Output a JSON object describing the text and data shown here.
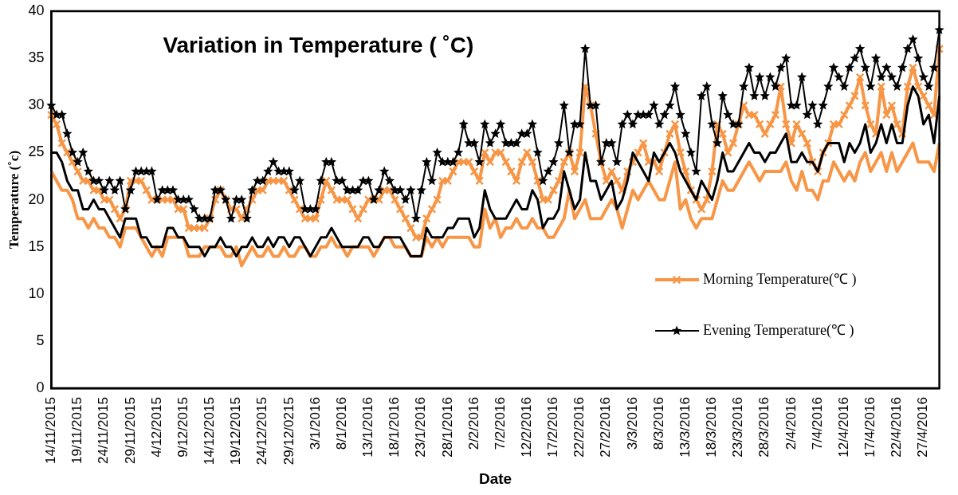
{
  "chart_data": {
    "type": "line",
    "title": "Variation in Temperature ( ˚C)",
    "xlabel": "Date",
    "ylabel": "Temperature (˚c)",
    "categories": [
      "14/11/2015",
      null,
      null,
      null,
      null,
      "19/11/2015",
      null,
      null,
      null,
      null,
      "24/11/2015",
      null,
      null,
      null,
      null,
      "29/11/2015",
      null,
      null,
      null,
      null,
      "4/12/2015",
      null,
      null,
      null,
      null,
      "9/12/2015",
      null,
      null,
      null,
      null,
      "14/12/2015",
      null,
      null,
      null,
      null,
      "19/12/2015",
      null,
      null,
      null,
      null,
      "24/12/2015",
      null,
      null,
      null,
      null,
      "29/12/0215",
      null,
      null,
      null,
      null,
      "3/1/2016",
      null,
      null,
      null,
      null,
      "8/1/2016",
      null,
      null,
      null,
      null,
      "13/1/2016",
      null,
      null,
      null,
      null,
      "18/1/2016",
      null,
      null,
      null,
      null,
      "23/1/2016",
      null,
      null,
      null,
      null,
      "28/1/2016",
      null,
      null,
      null,
      null,
      "2/2/2016",
      null,
      null,
      null,
      null,
      "7/2/2016",
      null,
      null,
      null,
      null,
      "12/2/2016",
      null,
      null,
      null,
      null,
      "17/2/2016",
      null,
      null,
      null,
      null,
      "22/2/2016",
      null,
      null,
      null,
      null,
      "27/2/2016",
      null,
      null,
      null,
      null,
      "3/3/2016",
      null,
      null,
      null,
      null,
      "8/3/2016",
      null,
      null,
      null,
      null,
      "13/3/2016",
      null,
      null,
      null,
      null,
      "18/3/2016",
      null,
      null,
      null,
      null,
      "23/3/2016",
      null,
      null,
      null,
      null,
      "28/3/2016",
      null,
      null,
      null,
      null,
      "2/4/2016",
      null,
      null,
      null,
      null,
      "7/4/2016",
      null,
      null,
      null,
      null,
      "12/4/2016",
      null,
      null,
      null,
      null,
      "17/4/2016",
      null,
      null,
      null,
      null,
      "22/4/2016",
      null,
      null,
      null,
      null,
      "27/4/2016",
      null,
      null,
      null
    ],
    "series": [
      {
        "name": "Morning Temperature(℃ )",
        "color": "#f79646",
        "marker": "cross",
        "values": [
          29,
          28,
          26,
          25,
          24,
          23,
          22,
          22,
          21,
          21,
          20,
          20,
          19,
          18,
          19,
          22,
          22,
          22,
          21,
          20,
          20,
          20,
          20,
          20,
          19,
          19,
          17,
          17,
          17,
          17,
          18,
          20,
          21,
          20,
          19,
          19,
          18,
          19,
          20,
          21,
          21,
          22,
          22,
          22,
          22,
          21,
          20,
          19,
          18,
          18,
          18,
          20,
          22,
          21,
          20,
          20,
          20,
          19,
          18,
          19,
          20,
          20,
          20,
          21,
          21,
          20,
          19,
          18,
          17,
          16,
          16,
          18,
          19,
          20,
          22,
          22,
          23,
          24,
          24,
          24,
          23,
          22,
          25,
          24,
          25,
          25,
          24,
          23,
          22,
          24,
          25,
          24,
          22,
          20,
          20,
          21,
          22,
          24,
          25,
          23,
          25,
          32,
          30,
          27,
          24,
          22,
          23,
          22,
          21,
          23,
          24,
          25,
          26,
          24,
          24,
          23,
          25,
          27,
          28,
          25,
          23,
          21,
          20,
          19,
          20,
          23,
          28,
          27,
          25,
          26,
          28,
          30,
          29,
          29,
          28,
          27,
          28,
          29,
          32,
          28,
          26,
          28,
          27,
          26,
          24,
          23,
          25,
          26,
          28,
          28,
          29,
          30,
          31,
          33,
          30,
          28,
          27,
          32,
          29,
          30,
          28,
          27,
          32,
          34,
          32,
          31,
          30,
          29,
          36
        ]
      },
      {
        "name": "Evening Temperature(℃ )",
        "color": "#000000",
        "marker": "star",
        "values": [
          30,
          29,
          29,
          27,
          25,
          24,
          25,
          23,
          22,
          22,
          21,
          22,
          21,
          22,
          19,
          21,
          23,
          23,
          23,
          23,
          20,
          21,
          21,
          21,
          20,
          20,
          20,
          19,
          18,
          18,
          18,
          21,
          21,
          20,
          18,
          20,
          20,
          18,
          21,
          22,
          22,
          23,
          24,
          23,
          23,
          23,
          21,
          22,
          19,
          19,
          19,
          22,
          24,
          24,
          22,
          22,
          21,
          21,
          21,
          22,
          22,
          20,
          21,
          23,
          22,
          21,
          21,
          20,
          21,
          18,
          21,
          24,
          22,
          25,
          24,
          24,
          24,
          25,
          28,
          26,
          26,
          24,
          28,
          26,
          27,
          28,
          26,
          26,
          26,
          27,
          27,
          28,
          25,
          22,
          23,
          24,
          26,
          30,
          25,
          28,
          28,
          36,
          30,
          30,
          24,
          26,
          26,
          24,
          28,
          29,
          28,
          29,
          29,
          29,
          30,
          28,
          29,
          30,
          32,
          29,
          27,
          25,
          23,
          31,
          32,
          28,
          26,
          31,
          29,
          28,
          28,
          32,
          34,
          31,
          33,
          31,
          33,
          32,
          34,
          35,
          30,
          30,
          33,
          29,
          30,
          28,
          30,
          32,
          34,
          33,
          32,
          34,
          35,
          36,
          34,
          32,
          35,
          33,
          34,
          33,
          32,
          34,
          36,
          37,
          35,
          33,
          32,
          34,
          38
        ]
      },
      {
        "color": "#f79646",
        "marker": "none",
        "values": [
          23,
          22,
          21,
          21,
          20,
          18,
          18,
          17,
          18,
          17,
          17,
          16,
          16,
          15,
          17,
          17,
          17,
          16,
          15,
          14,
          15,
          14,
          16,
          16,
          16,
          16,
          14,
          14,
          14,
          15,
          15,
          15,
          15,
          14,
          14,
          15,
          13,
          14,
          15,
          14,
          14,
          15,
          14,
          14,
          15,
          14,
          14,
          15,
          15,
          14,
          14,
          15,
          15,
          16,
          15,
          15,
          14,
          15,
          15,
          15,
          15,
          14,
          15,
          16,
          16,
          15,
          15,
          15,
          14,
          14,
          14,
          16,
          15,
          16,
          15,
          16,
          16,
          16,
          16,
          16,
          15,
          15,
          19,
          17,
          18,
          16,
          17,
          17,
          18,
          17,
          17,
          18,
          17,
          17,
          16,
          16,
          17,
          18,
          21,
          18,
          19,
          20,
          18,
          18,
          18,
          19,
          20,
          19,
          17,
          19,
          21,
          20,
          21,
          22,
          21,
          20,
          20,
          22,
          24,
          19,
          20,
          18,
          17,
          18,
          18,
          18,
          20,
          22,
          21,
          21,
          22,
          23,
          24,
          23,
          22,
          23,
          23,
          23,
          23,
          24,
          22,
          21,
          23,
          21,
          21,
          20,
          22,
          22,
          24,
          23,
          22,
          23,
          22,
          24,
          25,
          23,
          24,
          25,
          23,
          25,
          23,
          24,
          25,
          26,
          24,
          24,
          24,
          23,
          26
        ]
      },
      {
        "color": "#000000",
        "marker": "none",
        "values": [
          25,
          25,
          24,
          22,
          21,
          21,
          19,
          19,
          20,
          19,
          19,
          18,
          17,
          16,
          18,
          18,
          18,
          16,
          16,
          15,
          15,
          15,
          17,
          17,
          16,
          16,
          15,
          15,
          15,
          14,
          15,
          15,
          16,
          15,
          15,
          14,
          15,
          15,
          16,
          15,
          15,
          16,
          15,
          16,
          16,
          15,
          16,
          16,
          15,
          14,
          15,
          16,
          16,
          17,
          16,
          15,
          15,
          15,
          15,
          16,
          16,
          15,
          15,
          16,
          16,
          16,
          16,
          15,
          14,
          14,
          14,
          17,
          16,
          16,
          16,
          17,
          17,
          18,
          18,
          18,
          16,
          17,
          21,
          19,
          18,
          18,
          18,
          19,
          20,
          19,
          19,
          21,
          20,
          17,
          18,
          18,
          19,
          23,
          21,
          19,
          20,
          25,
          22,
          22,
          20,
          21,
          22,
          19,
          20,
          22,
          25,
          24,
          23,
          22,
          25,
          24,
          25,
          26,
          25,
          23,
          22,
          21,
          20,
          22,
          21,
          20,
          22,
          25,
          23,
          23,
          24,
          25,
          26,
          25,
          25,
          24,
          25,
          25,
          26,
          27,
          24,
          24,
          25,
          24,
          24,
          23,
          25,
          26,
          26,
          26,
          24,
          26,
          25,
          26,
          28,
          25,
          26,
          28,
          26,
          28,
          26,
          26,
          30,
          32,
          31,
          28,
          29,
          26,
          31
        ]
      }
    ],
    "ylim": [
      0,
      40
    ],
    "yticks": [
      0,
      5,
      10,
      15,
      20,
      25,
      30,
      35,
      40
    ],
    "legend": "right"
  }
}
